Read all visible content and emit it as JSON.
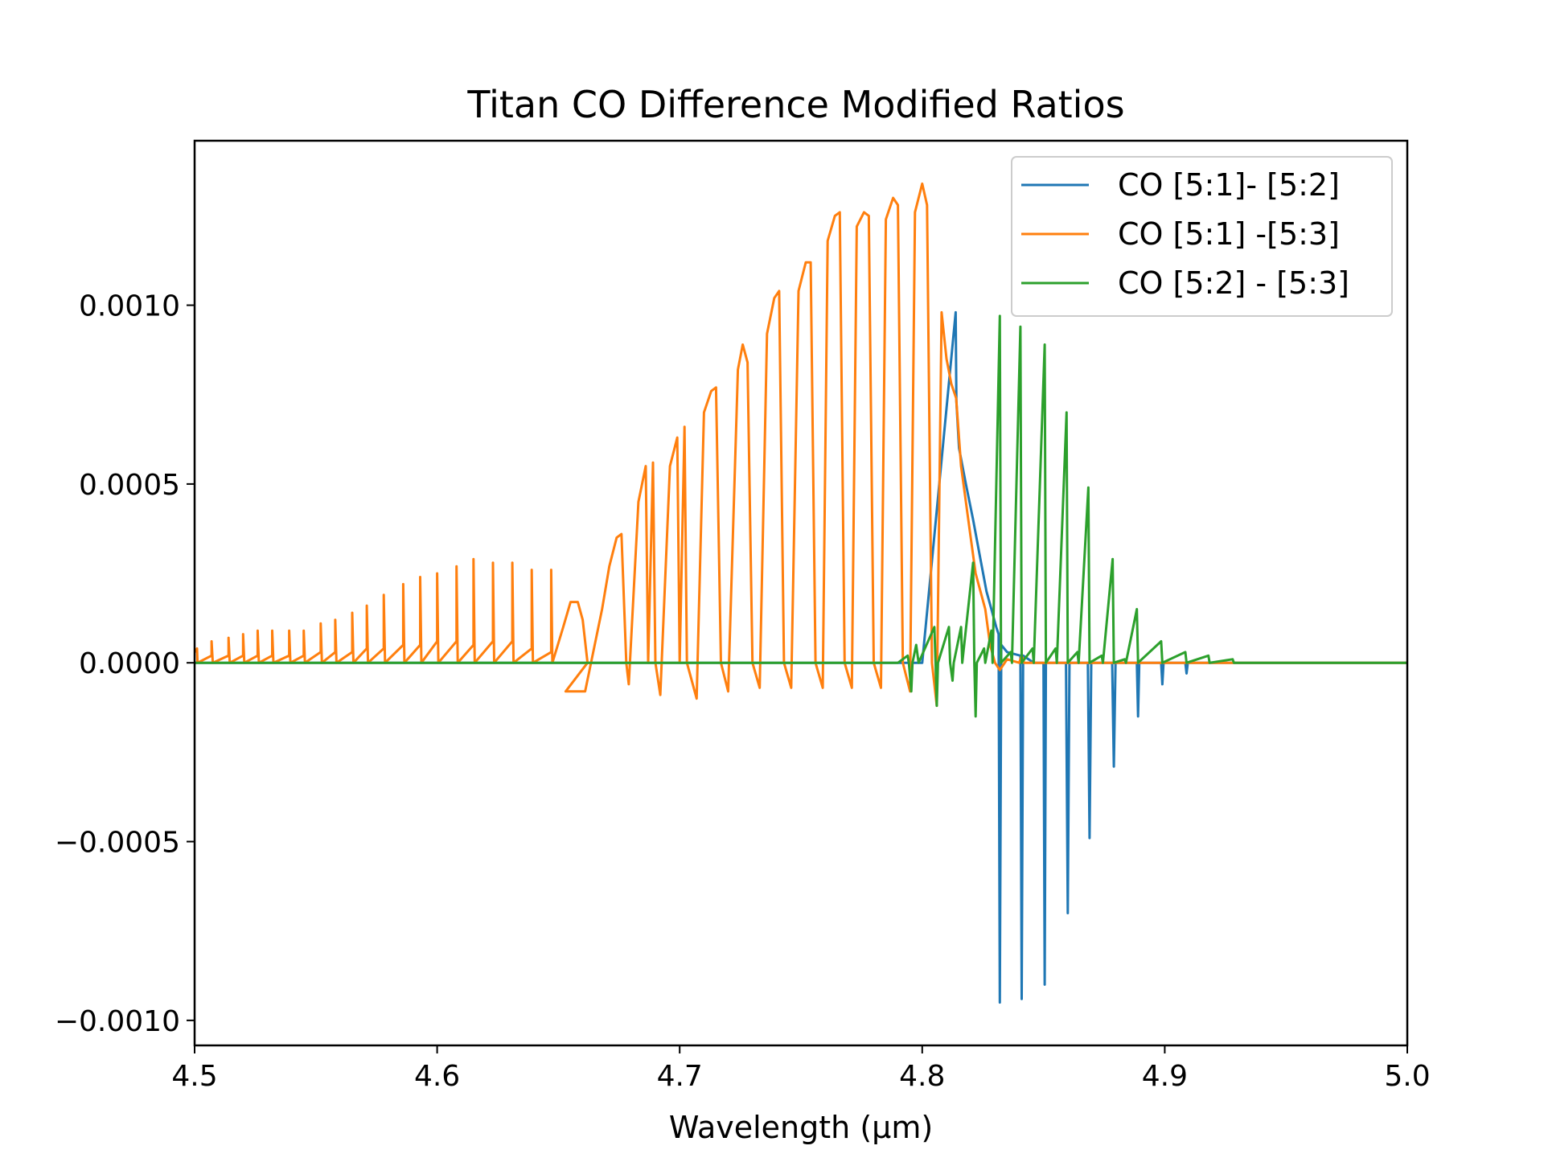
{
  "chart_data": {
    "type": "line",
    "title": "Titan CO Difference Modified Ratios",
    "xlabel": "Wavelength (µm)",
    "ylabel": "",
    "xlim": [
      4.5,
      5.0
    ],
    "ylim": [
      -0.00107,
      0.00146
    ],
    "xticks": [
      {
        "value": 4.5,
        "label": "4.5"
      },
      {
        "value": 4.6,
        "label": "4.6"
      },
      {
        "value": 4.7,
        "label": "4.7"
      },
      {
        "value": 4.8,
        "label": "4.8"
      },
      {
        "value": 4.9,
        "label": "4.9"
      },
      {
        "value": 5.0,
        "label": "5.0"
      }
    ],
    "yticks": [
      {
        "value": 0.001,
        "label": "0.0010"
      },
      {
        "value": 0.0005,
        "label": "0.0005"
      },
      {
        "value": 0.0,
        "label": "0.0000"
      },
      {
        "value": -0.0005,
        "label": "−0.0005"
      },
      {
        "value": -0.001,
        "label": "−0.0010"
      }
    ],
    "grid": false,
    "legend_position": "top-right",
    "series": [
      {
        "name": "CO [5:1]- [5:2]",
        "color": "#1f77b4",
        "points": [
          [
            4.5,
            0
          ],
          [
            4.8,
            0
          ],
          [
            4.8138,
            0.00098
          ],
          [
            4.8141,
            0.00073
          ],
          [
            4.8152,
            0.0006
          ],
          [
            4.818,
            0.0005
          ],
          [
            4.821,
            0.0004
          ],
          [
            4.824,
            0.00029
          ],
          [
            4.8265,
            0.0002
          ],
          [
            4.8285,
            0.00015
          ],
          [
            4.8305,
            0.0001
          ],
          [
            4.8315,
            8e-05
          ],
          [
            4.832,
            -0.00095
          ],
          [
            4.8326,
            5e-05
          ],
          [
            4.835,
            3e-05
          ],
          [
            4.8405,
            2e-05
          ],
          [
            4.841,
            -0.00094
          ],
          [
            4.8416,
            2e-05
          ],
          [
            4.846,
            0.0
          ],
          [
            4.85,
            0.0
          ],
          [
            4.8505,
            -0.0009
          ],
          [
            4.851,
            0.0
          ],
          [
            4.8593,
            0.0
          ],
          [
            4.86,
            -0.0007
          ],
          [
            4.8607,
            0.0
          ],
          [
            4.8683,
            0.0
          ],
          [
            4.869,
            -0.00049
          ],
          [
            4.8697,
            0.0
          ],
          [
            4.8783,
            0.0
          ],
          [
            4.879,
            -0.00029
          ],
          [
            4.8797,
            0.0
          ],
          [
            4.8885,
            0.0
          ],
          [
            4.889,
            -0.00015
          ],
          [
            4.8895,
            0.0
          ],
          [
            4.8985,
            0.0
          ],
          [
            4.899,
            -6e-05
          ],
          [
            4.8995,
            0.0
          ],
          [
            4.9085,
            0.0
          ],
          [
            4.909,
            -3e-05
          ],
          [
            4.9095,
            0.0
          ],
          [
            5.0,
            0.0
          ]
        ]
      },
      {
        "name": "CO [5:1] -[5:3]",
        "color": "#ff7f0e",
        "points": [
          [
            4.5,
            3e-05
          ],
          [
            4.501,
            4e-05
          ],
          [
            4.5012,
            0.0
          ],
          [
            4.507,
            2e-05
          ],
          [
            4.507,
            6e-05
          ],
          [
            4.5075,
            0.0
          ],
          [
            4.514,
            2e-05
          ],
          [
            4.514,
            7e-05
          ],
          [
            4.5145,
            0.0
          ],
          [
            4.52,
            2e-05
          ],
          [
            4.52,
            8e-05
          ],
          [
            4.5205,
            0.0
          ],
          [
            4.526,
            2e-05
          ],
          [
            4.526,
            9e-05
          ],
          [
            4.5265,
            0.0
          ],
          [
            4.532,
            2e-05
          ],
          [
            4.532,
            9e-05
          ],
          [
            4.5325,
            0.0
          ],
          [
            4.539,
            2e-05
          ],
          [
            4.539,
            9e-05
          ],
          [
            4.5395,
            0.0
          ],
          [
            4.545,
            2e-05
          ],
          [
            4.545,
            9e-05
          ],
          [
            4.5455,
            0.0
          ],
          [
            4.552,
            3e-05
          ],
          [
            4.552,
            0.00011
          ],
          [
            4.5525,
            0.0
          ],
          [
            4.558,
            3e-05
          ],
          [
            4.558,
            0.00012
          ],
          [
            4.5585,
            0.0
          ],
          [
            4.565,
            3e-05
          ],
          [
            4.565,
            0.00014
          ],
          [
            4.5655,
            0.0
          ],
          [
            4.571,
            4e-05
          ],
          [
            4.571,
            0.00016
          ],
          [
            4.5715,
            0.0
          ],
          [
            4.578,
            4e-05
          ],
          [
            4.578,
            0.00019
          ],
          [
            4.5785,
            0.0
          ],
          [
            4.586,
            5e-05
          ],
          [
            4.586,
            0.00022
          ],
          [
            4.5865,
            0.0
          ],
          [
            4.593,
            5e-05
          ],
          [
            4.593,
            0.00024
          ],
          [
            4.5935,
            0.0
          ],
          [
            4.6,
            6e-05
          ],
          [
            4.6,
            0.00025
          ],
          [
            4.6005,
            0.0
          ],
          [
            4.608,
            6e-05
          ],
          [
            4.608,
            0.00027
          ],
          [
            4.6085,
            0.0
          ],
          [
            4.615,
            5e-05
          ],
          [
            4.615,
            0.00029
          ],
          [
            4.6155,
            0.0
          ],
          [
            4.623,
            6e-05
          ],
          [
            4.623,
            0.00028
          ],
          [
            4.6235,
            0.0
          ],
          [
            4.631,
            6e-05
          ],
          [
            4.631,
            0.00028
          ],
          [
            4.6315,
            0.0
          ],
          [
            4.639,
            4e-05
          ],
          [
            4.639,
            0.00026
          ],
          [
            4.6395,
            0.0
          ],
          [
            4.647,
            3e-05
          ],
          [
            4.647,
            0.00026
          ],
          [
            4.6475,
            0.0
          ],
          [
            4.652,
            0.0001
          ],
          [
            4.655,
            0.00017
          ],
          [
            4.658,
            0.00017
          ],
          [
            4.66,
            0.00012
          ],
          [
            4.662,
            0.0
          ],
          [
            4.653,
            -8e-05
          ],
          [
            4.661,
            -8e-05
          ],
          [
            4.668,
            0.00015
          ],
          [
            4.671,
            0.00027
          ],
          [
            4.674,
            0.00035
          ],
          [
            4.676,
            0.00036
          ],
          [
            4.678,
            0.0
          ],
          [
            4.679,
            -6e-05
          ],
          [
            4.683,
            0.00045
          ],
          [
            4.686,
            0.00055
          ],
          [
            4.687,
            0.0
          ],
          [
            4.689,
            0.00056
          ],
          [
            4.69,
            0.0
          ],
          [
            4.692,
            -9e-05
          ],
          [
            4.696,
            0.00055
          ],
          [
            4.699,
            0.00063
          ],
          [
            4.7,
            0.0
          ],
          [
            4.702,
            0.00066
          ],
          [
            4.703,
            0.0
          ],
          [
            4.707,
            -0.0001
          ],
          [
            4.71,
            0.0007
          ],
          [
            4.713,
            0.00076
          ],
          [
            4.715,
            0.00077
          ],
          [
            4.717,
            0.0
          ],
          [
            4.72,
            -8e-05
          ],
          [
            4.724,
            0.00082
          ],
          [
            4.726,
            0.00089
          ],
          [
            4.728,
            0.00084
          ],
          [
            4.73,
            0.0
          ],
          [
            4.733,
            -7e-05
          ],
          [
            4.736,
            0.00092
          ],
          [
            4.739,
            0.00102
          ],
          [
            4.741,
            0.00104
          ],
          [
            4.743,
            0.0
          ],
          [
            4.746,
            -7e-05
          ],
          [
            4.749,
            0.00104
          ],
          [
            4.752,
            0.00112
          ],
          [
            4.754,
            0.00112
          ],
          [
            4.756,
            0.0
          ],
          [
            4.759,
            -7e-05
          ],
          [
            4.761,
            0.00118
          ],
          [
            4.764,
            0.00125
          ],
          [
            4.766,
            0.00126
          ],
          [
            4.768,
            0.0
          ],
          [
            4.771,
            -7e-05
          ],
          [
            4.773,
            0.00122
          ],
          [
            4.776,
            0.00126
          ],
          [
            4.778,
            0.00125
          ],
          [
            4.78,
            0.0
          ],
          [
            4.783,
            -7e-05
          ],
          [
            4.785,
            0.00124
          ],
          [
            4.788,
            0.0013
          ],
          [
            4.79,
            0.00128
          ],
          [
            4.792,
            0.0
          ],
          [
            4.795,
            -8e-05
          ],
          [
            4.797,
            0.00126
          ],
          [
            4.8,
            0.00134
          ],
          [
            4.802,
            0.00128
          ],
          [
            4.804,
            0.0
          ],
          [
            4.806,
            -0.00012
          ],
          [
            4.808,
            0.00098
          ],
          [
            4.81,
            0.00085
          ],
          [
            4.812,
            0.00078
          ],
          [
            4.814,
            0.00074
          ],
          [
            4.816,
            0.00055
          ],
          [
            4.818,
            0.00045
          ],
          [
            4.82,
            0.00035
          ],
          [
            4.822,
            0.00025
          ],
          [
            4.824,
            0.0002
          ],
          [
            4.826,
            0.00015
          ],
          [
            4.828,
            5e-05
          ],
          [
            4.83,
            0.0
          ],
          [
            4.832,
            -2e-05
          ],
          [
            4.835,
            1e-05
          ],
          [
            4.84,
            0.0
          ],
          [
            4.841,
            2e-05
          ],
          [
            4.842,
            0.0
          ],
          [
            4.85,
            0.0
          ],
          [
            4.86,
            0.0
          ],
          [
            4.87,
            0.0
          ],
          [
            5.0,
            0.0
          ]
        ]
      },
      {
        "name": "CO [5:2] - [5:3]",
        "color": "#2ca02c",
        "points": [
          [
            4.5,
            0.0
          ],
          [
            4.79,
            0.0
          ],
          [
            4.794,
            2e-05
          ],
          [
            4.7945,
            0.0
          ],
          [
            4.7955,
            -8e-05
          ],
          [
            4.796,
            0.0
          ],
          [
            4.7975,
            5e-05
          ],
          [
            4.7985,
            0.0
          ],
          [
            4.805,
            0.0001
          ],
          [
            4.8055,
            0.0
          ],
          [
            4.806,
            -0.00012
          ],
          [
            4.8065,
            0.0
          ],
          [
            4.811,
            0.0001
          ],
          [
            4.8115,
            0.0
          ],
          [
            4.8125,
            -5e-05
          ],
          [
            4.813,
            0.0
          ],
          [
            4.816,
            0.0001
          ],
          [
            4.8165,
            0.0
          ],
          [
            4.821,
            0.00028
          ],
          [
            4.8215,
            0.0
          ],
          [
            4.822,
            -0.00015
          ],
          [
            4.8225,
            0.0
          ],
          [
            4.8255,
            4e-05
          ],
          [
            4.826,
            0.0
          ],
          [
            4.8285,
            9e-05
          ],
          [
            4.829,
            0.0
          ],
          [
            4.832,
            0.00097
          ],
          [
            4.8325,
            0.0
          ],
          [
            4.8365,
            3e-05
          ],
          [
            4.837,
            0.0
          ],
          [
            4.8405,
            0.00094
          ],
          [
            4.841,
            0.0
          ],
          [
            4.8455,
            4e-05
          ],
          [
            4.846,
            0.0
          ],
          [
            4.8505,
            0.00089
          ],
          [
            4.851,
            0.0
          ],
          [
            4.855,
            4e-05
          ],
          [
            4.8555,
            0.0
          ],
          [
            4.8595,
            0.0007
          ],
          [
            4.86,
            0.0
          ],
          [
            4.864,
            3e-05
          ],
          [
            4.8645,
            0.0
          ],
          [
            4.8685,
            0.00049
          ],
          [
            4.869,
            0.0
          ],
          [
            4.874,
            2e-05
          ],
          [
            4.8745,
            0.0
          ],
          [
            4.8785,
            0.00029
          ],
          [
            4.879,
            0.0
          ],
          [
            4.8835,
            1e-05
          ],
          [
            4.884,
            0.0
          ],
          [
            4.8885,
            0.00015
          ],
          [
            4.889,
            0.0
          ],
          [
            4.8985,
            6e-05
          ],
          [
            4.899,
            0.0
          ],
          [
            4.9085,
            3e-05
          ],
          [
            4.909,
            0.0
          ],
          [
            4.918,
            2e-05
          ],
          [
            4.9185,
            0.0
          ],
          [
            4.928,
            1e-05
          ],
          [
            4.9285,
            0.0
          ],
          [
            5.0,
            0.0
          ]
        ]
      }
    ]
  }
}
